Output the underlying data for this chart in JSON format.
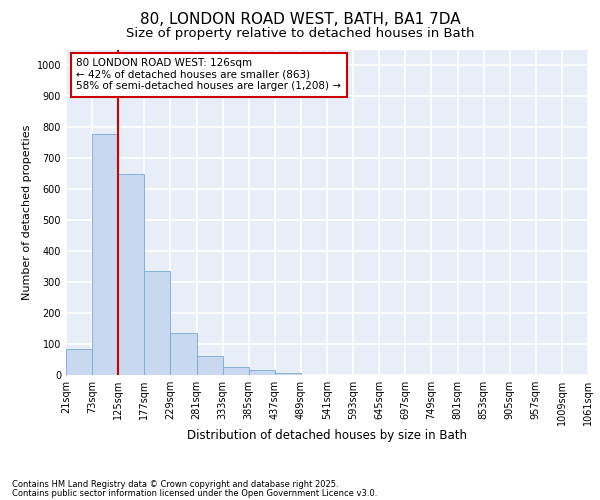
{
  "title1": "80, LONDON ROAD WEST, BATH, BA1 7DA",
  "title2": "Size of property relative to detached houses in Bath",
  "xlabel": "Distribution of detached houses by size in Bath",
  "ylabel": "Number of detached properties",
  "bar_values": [
    85,
    780,
    650,
    335,
    135,
    60,
    25,
    15,
    5,
    0,
    0,
    0,
    0,
    0,
    0,
    0,
    0,
    0,
    0,
    0
  ],
  "bar_edges": [
    21,
    73,
    125,
    177,
    229,
    281,
    333,
    385,
    437,
    489,
    541,
    593,
    645,
    697,
    749,
    801,
    853,
    905,
    957,
    1009,
    1061
  ],
  "bar_color": "#c8d8f0",
  "bar_edgecolor": "#7aaad0",
  "ylim": [
    0,
    1050
  ],
  "yticks": [
    0,
    100,
    200,
    300,
    400,
    500,
    600,
    700,
    800,
    900,
    1000
  ],
  "vline_x": 125,
  "vline_color": "#cc0000",
  "annotation_text": "80 LONDON ROAD WEST: 126sqm\n← 42% of detached houses are smaller (863)\n58% of semi-detached houses are larger (1,208) →",
  "annotation_box_color": "#cc0000",
  "annotation_facecolor": "white",
  "footnote1": "Contains HM Land Registry data © Crown copyright and database right 2025.",
  "footnote2": "Contains public sector information licensed under the Open Government Licence v3.0.",
  "bg_color": "#e8eef8",
  "grid_color": "#ffffff",
  "title1_fontsize": 11,
  "title2_fontsize": 9.5,
  "xlabel_fontsize": 8.5,
  "ylabel_fontsize": 8,
  "tick_fontsize": 7,
  "annotation_fontsize": 7.5,
  "footnote_fontsize": 6
}
